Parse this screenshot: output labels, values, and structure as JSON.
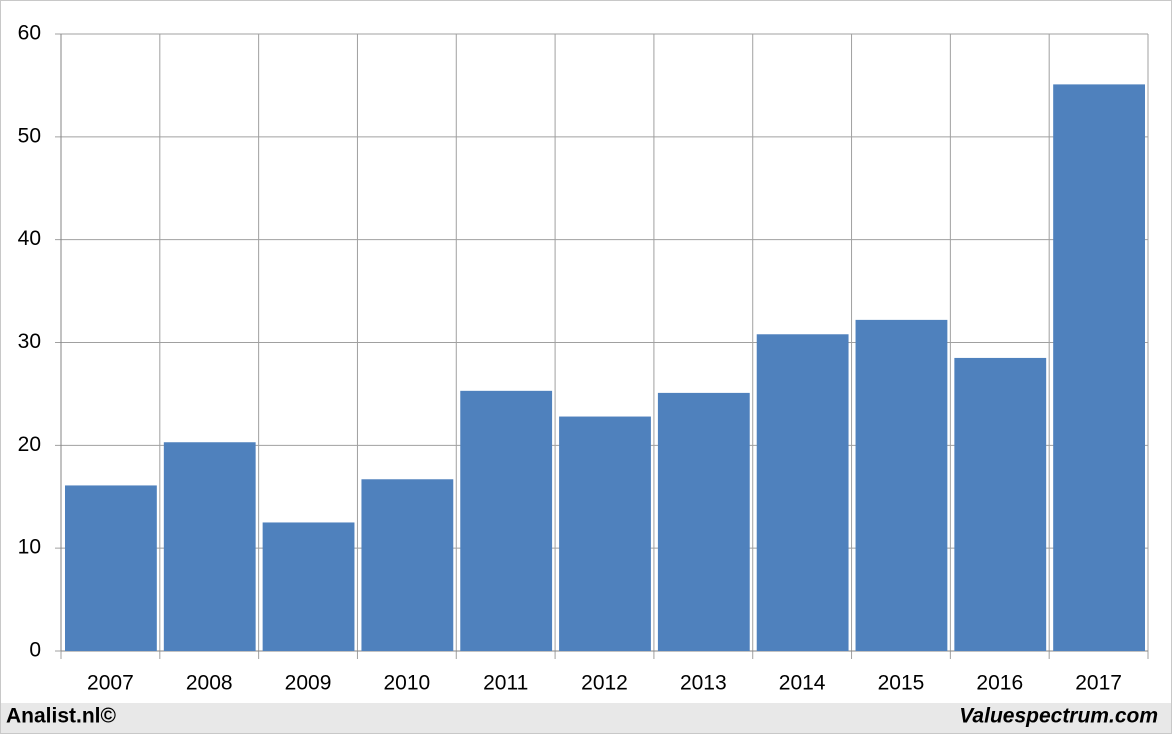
{
  "chart_data": {
    "type": "bar",
    "categories": [
      "2007",
      "2008",
      "2009",
      "2010",
      "2011",
      "2012",
      "2013",
      "2014",
      "2015",
      "2016",
      "2017"
    ],
    "values": [
      16.1,
      20.3,
      12.5,
      16.7,
      25.3,
      22.8,
      25.1,
      30.8,
      32.2,
      28.5,
      55.1
    ],
    "color": "#4f81bd",
    "ylim": [
      0,
      60
    ],
    "yticks": [
      0,
      10,
      20,
      30,
      40,
      50,
      60
    ],
    "grid": true
  },
  "footer": {
    "left": "Analist.nl©",
    "right": "Valuespectrum.com"
  }
}
